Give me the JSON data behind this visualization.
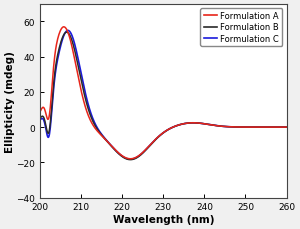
{
  "title": "",
  "xlabel": "Wavelength (nm)",
  "ylabel": "Ellipticity (mdeg)",
  "xlim": [
    200,
    260
  ],
  "ylim": [
    -40,
    70
  ],
  "yticks": [
    -40,
    -20,
    0,
    20,
    40,
    60
  ],
  "xticks": [
    200,
    210,
    220,
    230,
    240,
    250,
    260
  ],
  "legend": [
    "Formulation A",
    "Formulation B",
    "Formulation C"
  ],
  "colors_A": "#e8251a",
  "colors_B": "#2a2a2a",
  "colors_C": "#1a1adb",
  "background_color": "#ffffff",
  "fig_background": "#f0f0f0"
}
